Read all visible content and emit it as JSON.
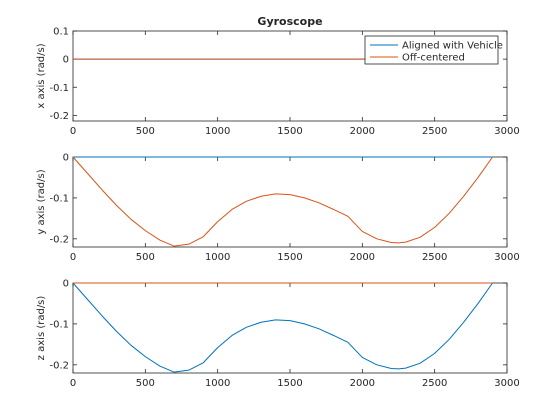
{
  "figure": {
    "title": "Gyroscope"
  },
  "legend": {
    "location": "top-right",
    "entries": [
      {
        "name": "Aligned with Vehicle",
        "color": "#0072BD"
      },
      {
        "name": "Off-centered",
        "color": "#D95319"
      }
    ]
  },
  "chart_data": [
    {
      "type": "line",
      "title": "Gyroscope",
      "ylabel": "x axis (rad/s)",
      "xlim": [
        0,
        3000
      ],
      "ylim": [
        -0.22,
        0.1
      ],
      "xticks": [
        "0",
        "500",
        "1000",
        "1500",
        "2000",
        "2500",
        "3000"
      ],
      "yticks": [
        "-0.2",
        "-0.1",
        "0",
        "0.1"
      ],
      "ytick_values": [
        -0.2,
        -0.1,
        0,
        0.1
      ],
      "legend_location": "top-right",
      "series": [
        {
          "name": "Aligned with Vehicle",
          "color": "#0072BD",
          "x": [
            0,
            2900
          ],
          "y": [
            0,
            0
          ]
        },
        {
          "name": "Off-centered",
          "color": "#D95319",
          "x": [
            0,
            2900
          ],
          "y": [
            0,
            0
          ]
        }
      ]
    },
    {
      "type": "line",
      "ylabel": "y axis (rad/s)",
      "xlim": [
        0,
        3000
      ],
      "ylim": [
        -0.22,
        0
      ],
      "xticks": [
        "0",
        "500",
        "1000",
        "1500",
        "2000",
        "2500",
        "3000"
      ],
      "yticks": [
        "-0.2",
        "-0.1",
        "0"
      ],
      "ytick_values": [
        -0.2,
        -0.1,
        0
      ],
      "series": [
        {
          "name": "Aligned with Vehicle",
          "color": "#0072BD",
          "x": [
            0,
            2900
          ],
          "y": [
            0,
            0
          ]
        },
        {
          "name": "Off-centered",
          "color": "#D95319",
          "x": [
            0,
            100,
            200,
            300,
            400,
            500,
            600,
            700,
            800,
            900,
            1000,
            1100,
            1200,
            1300,
            1400,
            1500,
            1600,
            1700,
            1800,
            1900,
            2000,
            2100,
            2200,
            2250,
            2300,
            2400,
            2500,
            2600,
            2700,
            2800,
            2900
          ],
          "y": [
            0,
            -0.04,
            -0.08,
            -0.118,
            -0.152,
            -0.18,
            -0.203,
            -0.218,
            -0.213,
            -0.195,
            -0.158,
            -0.128,
            -0.108,
            -0.096,
            -0.09,
            -0.092,
            -0.1,
            -0.112,
            -0.128,
            -0.145,
            -0.182,
            -0.2,
            -0.209,
            -0.21,
            -0.208,
            -0.196,
            -0.172,
            -0.138,
            -0.096,
            -0.05,
            0
          ]
        }
      ]
    },
    {
      "type": "line",
      "ylabel": "z axis (rad/s)",
      "xlim": [
        0,
        3000
      ],
      "ylim": [
        -0.22,
        0
      ],
      "xticks": [
        "0",
        "500",
        "1000",
        "1500",
        "2000",
        "2500",
        "3000"
      ],
      "yticks": [
        "-0.2",
        "-0.1",
        "0"
      ],
      "ytick_values": [
        -0.2,
        -0.1,
        0
      ],
      "series": [
        {
          "name": "Aligned with Vehicle",
          "color": "#0072BD",
          "x": [
            0,
            100,
            200,
            300,
            400,
            500,
            600,
            700,
            800,
            900,
            1000,
            1100,
            1200,
            1300,
            1400,
            1500,
            1600,
            1700,
            1800,
            1900,
            2000,
            2100,
            2200,
            2250,
            2300,
            2400,
            2500,
            2600,
            2700,
            2800,
            2900
          ],
          "y": [
            0,
            -0.04,
            -0.08,
            -0.118,
            -0.152,
            -0.18,
            -0.203,
            -0.218,
            -0.213,
            -0.195,
            -0.158,
            -0.128,
            -0.108,
            -0.096,
            -0.09,
            -0.092,
            -0.1,
            -0.112,
            -0.128,
            -0.145,
            -0.182,
            -0.2,
            -0.209,
            -0.21,
            -0.208,
            -0.196,
            -0.172,
            -0.138,
            -0.096,
            -0.05,
            0
          ]
        },
        {
          "name": "Off-centered",
          "color": "#D95319",
          "x": [
            0,
            2900
          ],
          "y": [
            0,
            0
          ]
        }
      ]
    }
  ]
}
